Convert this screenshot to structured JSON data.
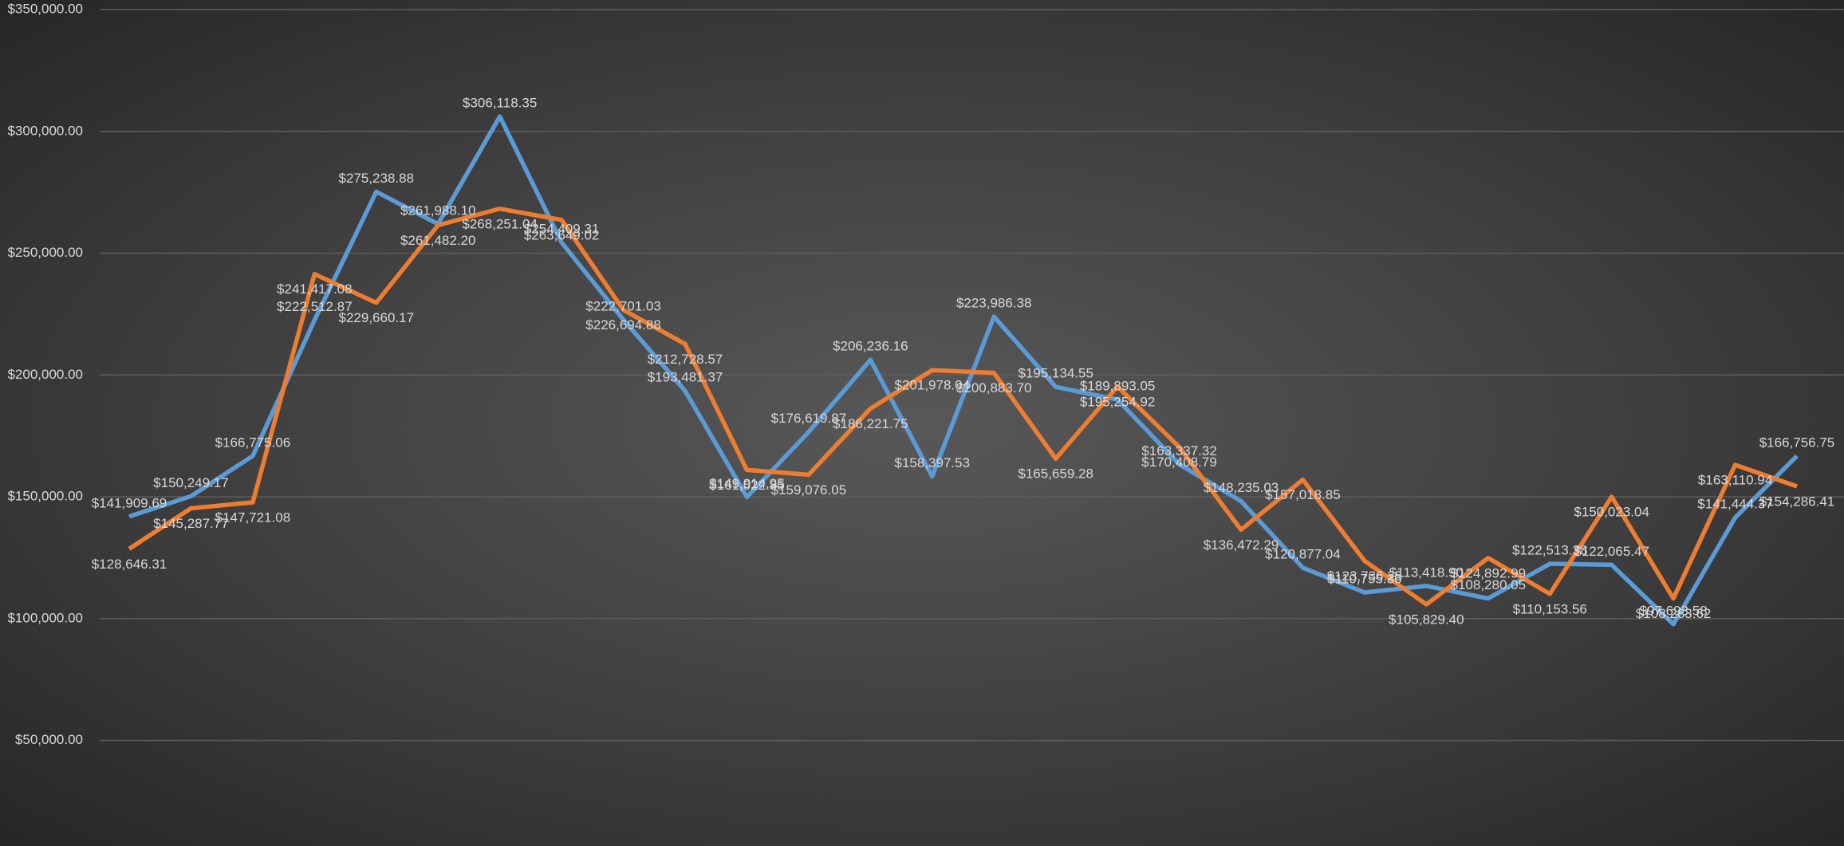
{
  "chart_data": {
    "type": "line",
    "categories": [
      null,
      null,
      null,
      null,
      null,
      null,
      null,
      null,
      null,
      null,
      null,
      null,
      null,
      null,
      null,
      null,
      null,
      null,
      null,
      null,
      null,
      null,
      null,
      null,
      null,
      null,
      null,
      null
    ],
    "series": [
      {
        "color": "#5b9bd5",
        "values": [
          141909.69,
          150249.17,
          166775.06,
          222512.87,
          275238.88,
          261988.1,
          306118.35,
          254409.31,
          222701.03,
          193481.37,
          149914.95,
          176619.87,
          206236.16,
          158397.53,
          223986.38,
          195134.55,
          189893.05,
          163337.32,
          148235.03,
          120877.04,
          110755.36,
          113418.9,
          108280.05,
          122513.38,
          122065.47,
          97693.58,
          141444.37,
          166756.75
        ],
        "value_labels": [
          "$141,909.69",
          "$150,249.17",
          "$166,775.06",
          "$222,512.87",
          "$275,238.88",
          "$261,988.10",
          "$306,118.35",
          "$254,409.31",
          "$222,701.03",
          "$193,481.37",
          "$149,914.95",
          "$176,619.87",
          "$206,236.16",
          "$158,397.53",
          "$223,986.38",
          "$195,134.55",
          "$189,893.05",
          "$163,337.32",
          "$148,235.03",
          "$120,877.04",
          "$110,755.36",
          "$113,418.90",
          "$108,280.05",
          "$122,513.38",
          "$122,065.47",
          "$97,693.58",
          "$141,444.37",
          "$166,756.75"
        ]
      },
      {
        "color": "#ed7d31",
        "values": [
          128646.31,
          145287.77,
          147721.08,
          241417.08,
          229660.17,
          261482.2,
          268251.04,
          263649.02,
          226694.88,
          212728.57,
          161022.85,
          159076.05,
          186221.75,
          201978.04,
          200883.7,
          165659.28,
          195254.92,
          170408.79,
          136472.29,
          157018.85,
          123736.25,
          105829.4,
          124892.99,
          110153.56,
          150023.04,
          108283.62,
          163110.94,
          154286.41
        ],
        "value_labels": [
          "$128,646.31",
          "$145,287.77",
          "$147,721.08",
          "$241,417.08",
          "$229,660.17",
          "$261,482.20",
          "$268,251.04",
          "$263,649.02",
          "$226,694.88",
          "$212,728.57",
          "$161,022.85",
          "$159,076.05",
          "$186,221.75",
          "$201,978.04",
          "$200,883.70",
          "$165,659.28",
          "$195,254.92",
          "$170,408.79",
          "$136,472.29",
          "$157,018.85",
          "$123,736.25",
          "$105,829.40",
          "$124,892.99",
          "$110,153.56",
          "$150,023.04",
          "$108,283.62",
          "$163,110.94",
          "$154,286.41"
        ]
      }
    ],
    "ylim": [
      7000,
      350000
    ],
    "yticks": [
      {
        "value": 50000,
        "label": "$50,000.00"
      },
      {
        "value": 100000,
        "label": "$100,000.00"
      },
      {
        "value": 150000,
        "label": "$150,000.00"
      },
      {
        "value": 200000,
        "label": "$200,000.00"
      },
      {
        "value": 250000,
        "label": "$250,000.00"
      },
      {
        "value": 300000,
        "label": "$300,000.00"
      },
      {
        "value": 350000,
        "label": "$350,000.00"
      }
    ],
    "grid": true
  }
}
